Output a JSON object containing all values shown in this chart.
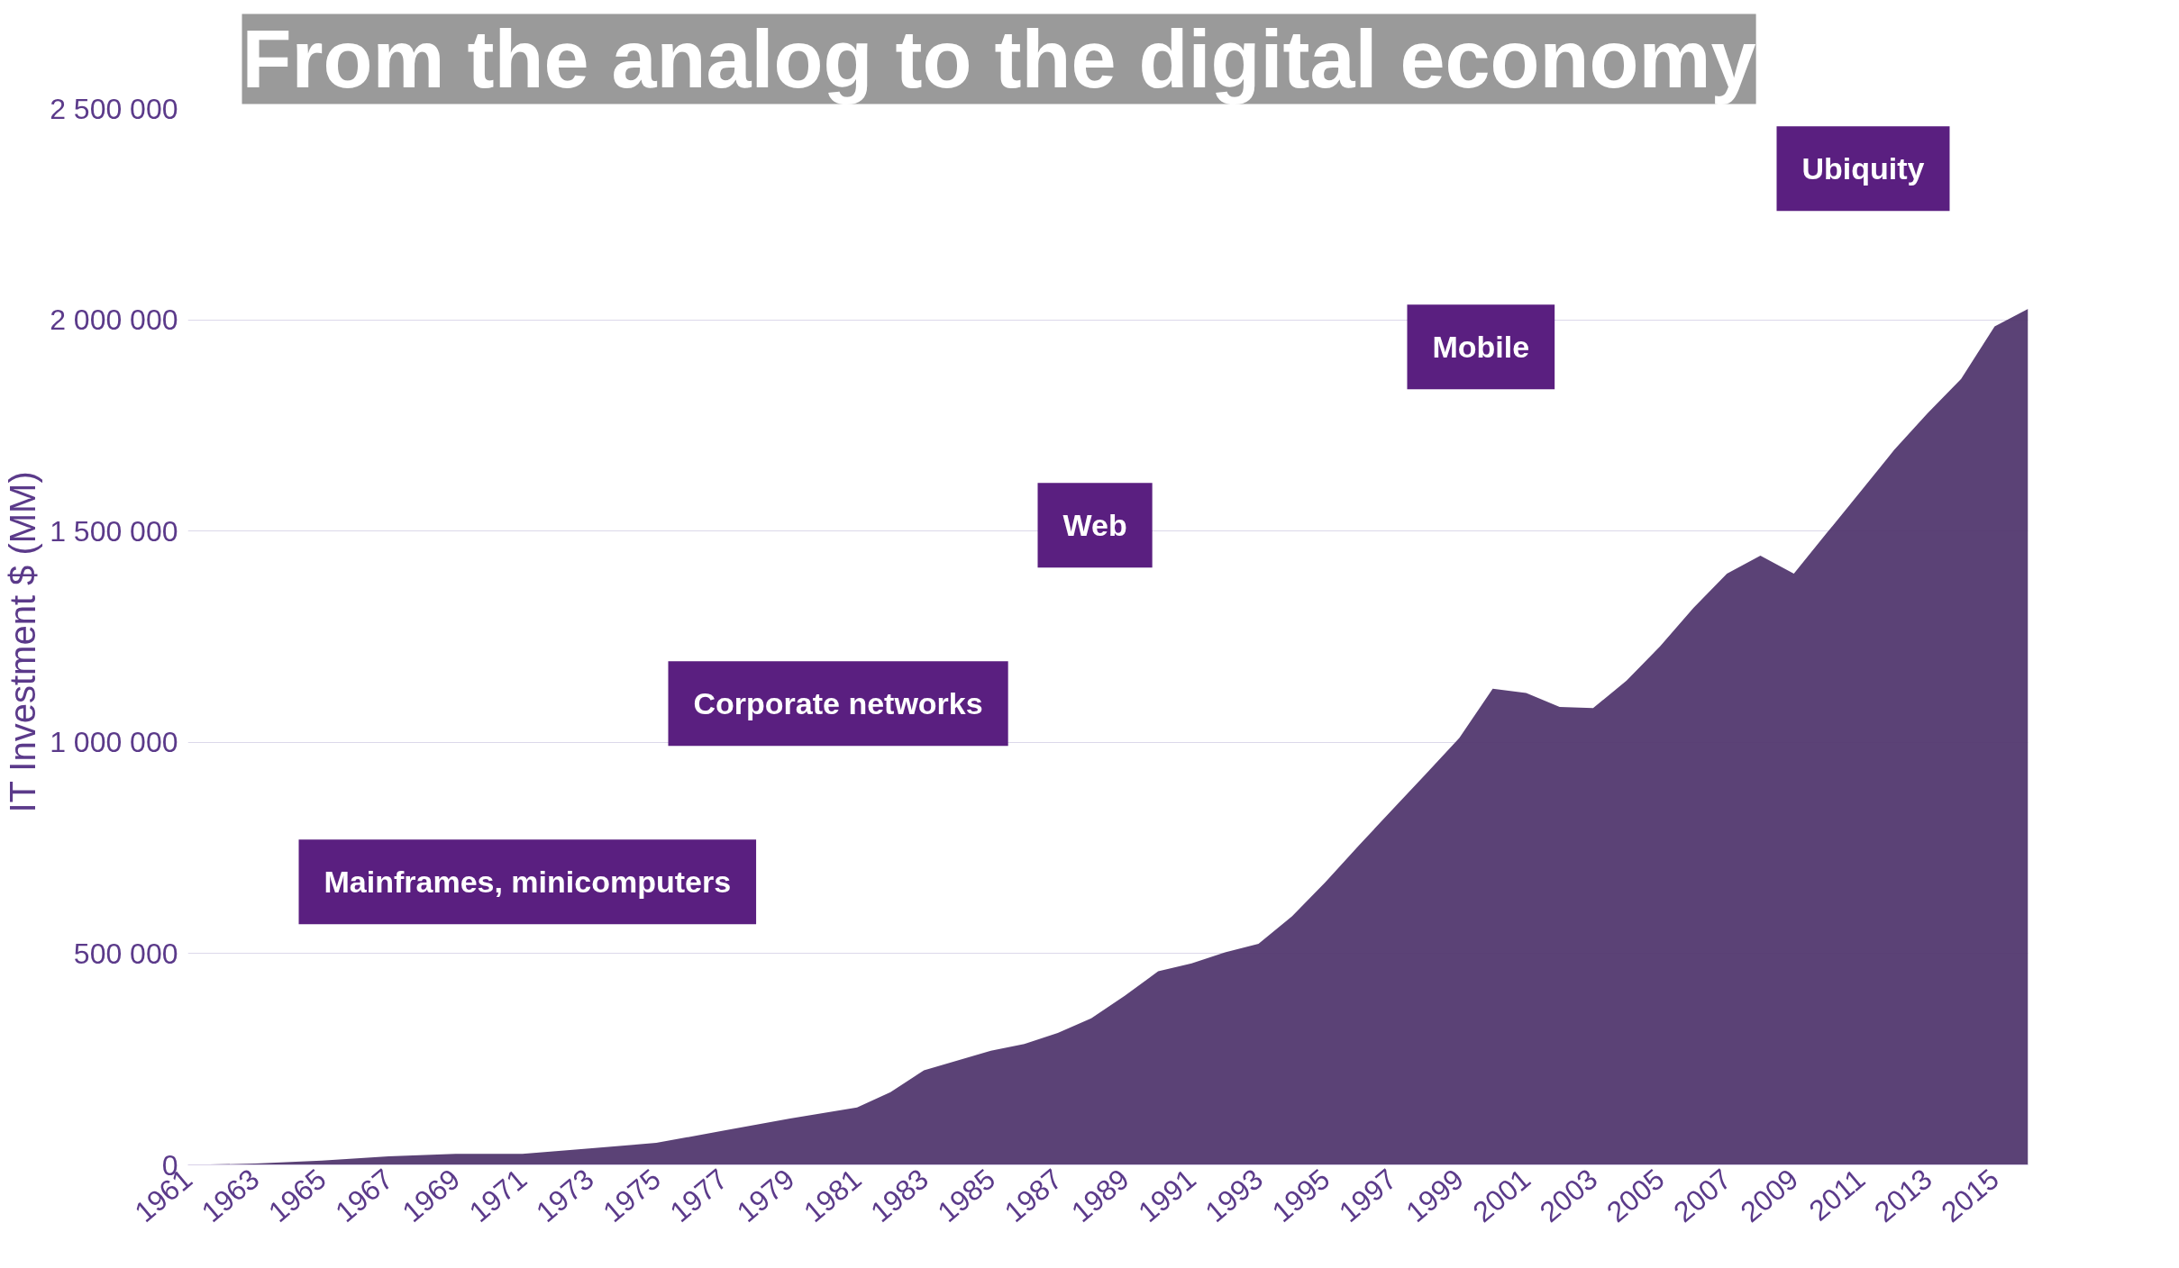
{
  "chart_data": {
    "type": "area",
    "title": "From the analog to the digital economy",
    "ylabel": "IT Investment  $ (MM)",
    "x": [
      1961,
      1963,
      1965,
      1967,
      1969,
      1971,
      1973,
      1975,
      1977,
      1979,
      1981,
      1982,
      1983,
      1985,
      1986,
      1987,
      1988,
      1989,
      1990,
      1991,
      1992,
      1993,
      1994,
      1995,
      1996,
      1997,
      1998,
      1999,
      2000,
      2001,
      2002,
      2003,
      2004,
      2005,
      2006,
      2007,
      2008,
      2009,
      2010,
      2011,
      2012,
      2013,
      2014,
      2015,
      2016
    ],
    "series": [
      {
        "color": "#52386f",
        "values": [
          0,
          3000,
          10000,
          20000,
          26000,
          26000,
          39000,
          52000,
          81000,
          110000,
          136000,
          172000,
          224000,
          270000,
          286000,
          312000,
          347000,
          400000,
          458000,
          477000,
          503000,
          523000,
          588000,
          669000,
          756000,
          841000,
          925000,
          1010000,
          1127000,
          1117000,
          1084000,
          1081000,
          1146000,
          1227000,
          1318000,
          1399000,
          1442000,
          1399000,
          1497000,
          1594000,
          1692000,
          1779000,
          1860000,
          1984000,
          2026000
        ]
      }
    ],
    "xlim": [
      1961,
      2016
    ],
    "ylim": [
      0,
      2500000
    ],
    "xticks": [
      1961,
      1963,
      1965,
      1967,
      1969,
      1971,
      1973,
      1975,
      1977,
      1979,
      1981,
      1983,
      1985,
      1987,
      1989,
      1991,
      1993,
      1995,
      1997,
      1999,
      2001,
      2003,
      2005,
      2007,
      2009,
      2011,
      2013,
      2015
    ],
    "yticks": [
      0,
      {
        "value": 500000,
        "label": "500 000"
      },
      {
        "value": 1000000,
        "label": "1 000 000"
      },
      {
        "value": 1500000,
        "label": "1 500 000"
      },
      {
        "value": 2000000,
        "label": "2 000 000"
      },
      {
        "value": 2500000,
        "label": "2 500 000"
      }
    ],
    "grid": "y",
    "annotations": [
      "Mainframes, minicomputers",
      "Corporate networks",
      "Web",
      "Mobile",
      "Ubiquity"
    ]
  }
}
